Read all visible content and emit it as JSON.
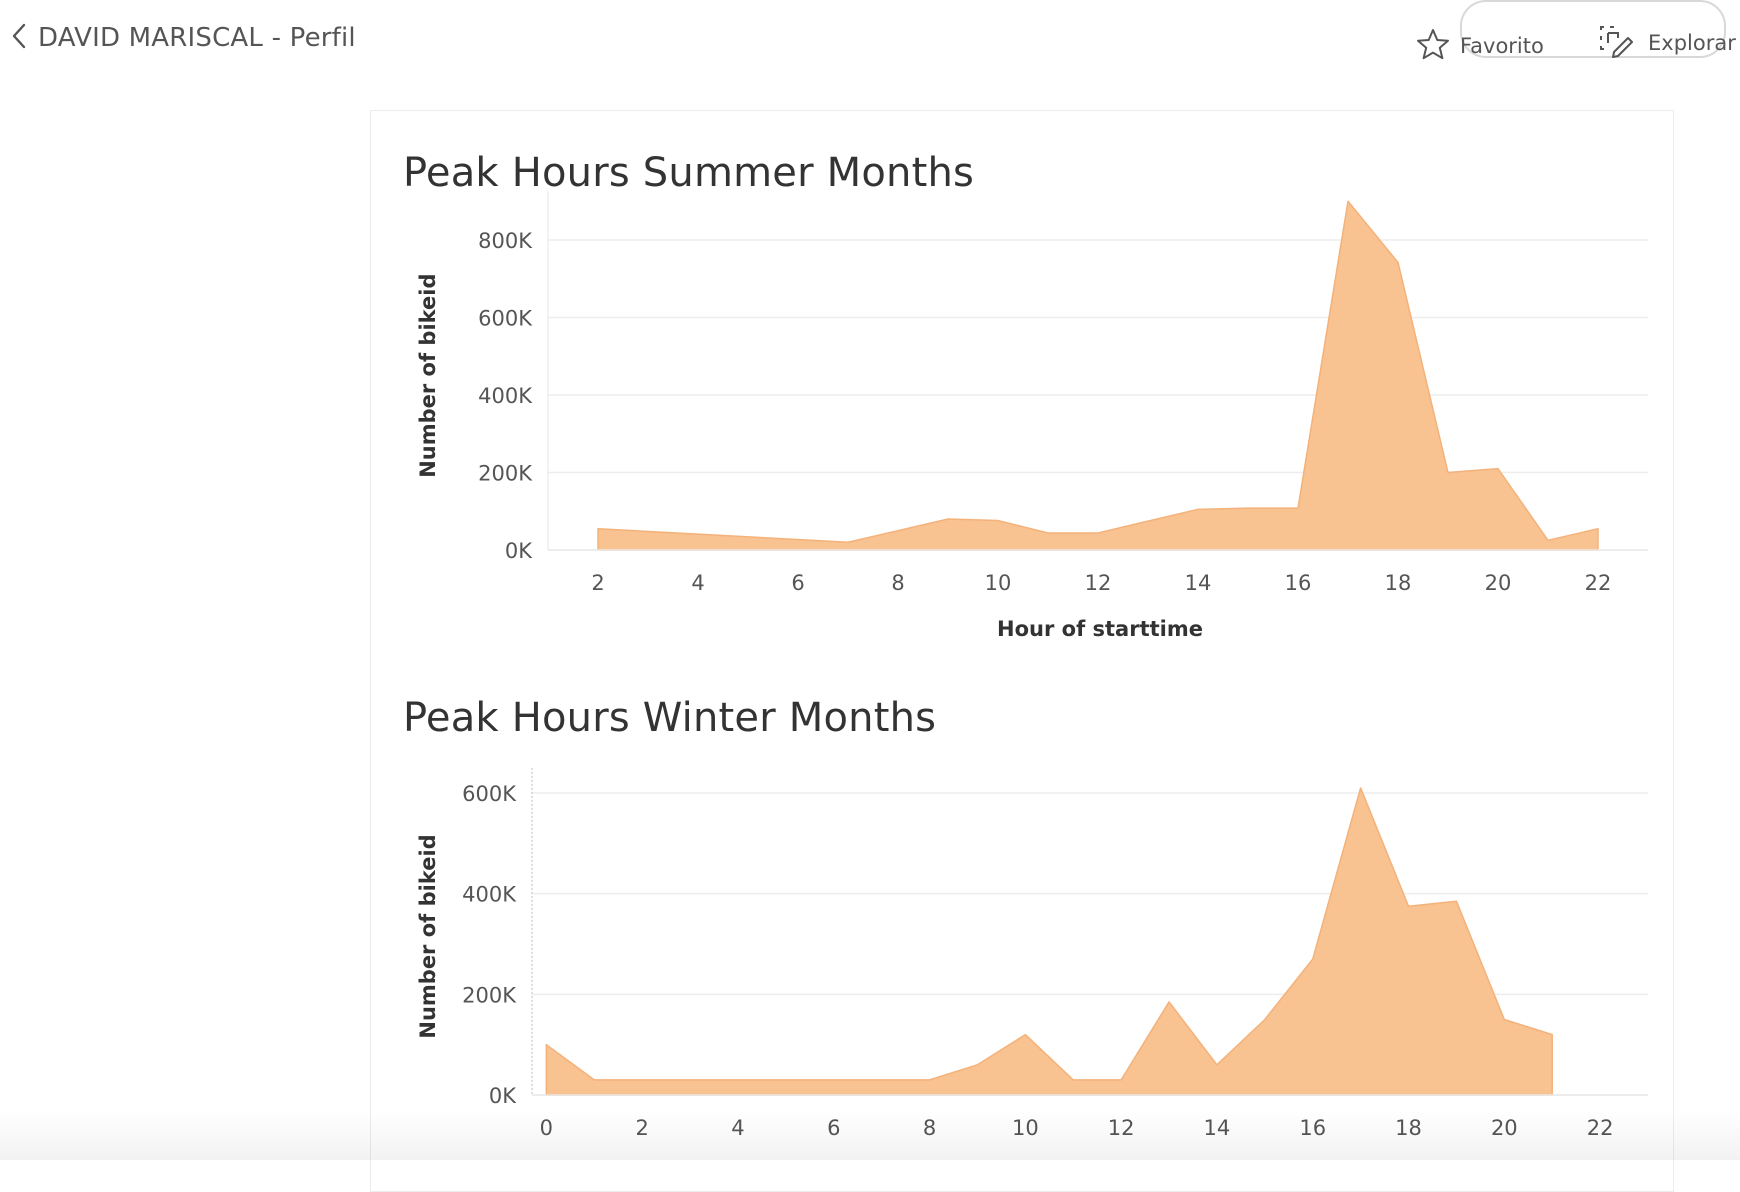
{
  "header": {
    "back_label": "DAVID MARISCAL - Perfil",
    "favorite_label": "Favorito",
    "explore_label": "Explorar"
  },
  "charts": [
    {
      "title": "Peak Hours Summer Months",
      "ylabel": "Number of bikeid",
      "xlabel": "Hour of starttime",
      "ytick_labels": [
        "800K",
        "600K",
        "400K",
        "200K",
        "0K"
      ],
      "xtick_labels": [
        "2",
        "4",
        "6",
        "8",
        "10",
        "12",
        "14",
        "16",
        "18",
        "20",
        "22"
      ]
    },
    {
      "title": "Peak Hours Winter Months",
      "ylabel": "Number of bikeid",
      "xlabel": "",
      "ytick_labels": [
        "600K",
        "400K",
        "200K",
        "0K"
      ],
      "xtick_labels": [
        "0",
        "2",
        "4",
        "6",
        "8",
        "10",
        "12",
        "14",
        "16",
        "18",
        "20",
        "22"
      ]
    }
  ],
  "chart_data": [
    {
      "type": "area",
      "title": "Peak Hours Summer Months",
      "xlabel": "Hour of starttime",
      "ylabel": "Number of bikeid",
      "color": "#f8c291",
      "x": [
        2,
        7,
        9,
        10,
        11,
        12,
        14,
        15,
        16,
        17,
        18,
        19,
        20,
        21,
        22
      ],
      "series": [
        {
          "values": [
            55000,
            20000,
            80000,
            76000,
            44000,
            44000,
            105000,
            108000,
            108000,
            900000,
            742000,
            200000,
            210000,
            25000,
            55000
          ]
        }
      ],
      "xlim": [
        1,
        23
      ],
      "yticks": [
        0,
        200000,
        400000,
        600000,
        800000
      ],
      "ylim": [
        0,
        900000
      ],
      "grid": "horizontal"
    },
    {
      "type": "area",
      "title": "Peak Hours Winter Months",
      "xlabel": "",
      "ylabel": "Number of bikeid",
      "color": "#f8c291",
      "x": [
        0,
        1,
        8,
        9,
        10,
        11,
        12,
        13,
        14,
        15,
        16,
        17,
        18,
        19,
        20,
        21
      ],
      "series": [
        {
          "values": [
            100000,
            30000,
            30000,
            60000,
            120000,
            30000,
            30000,
            185000,
            60000,
            150000,
            270000,
            610000,
            375000,
            385000,
            150000,
            120000
          ]
        }
      ],
      "xlim": [
        -0.3,
        23
      ],
      "yticks": [
        0,
        200000,
        400000,
        600000
      ],
      "ylim": [
        0,
        630000
      ],
      "grid": "horizontal"
    }
  ]
}
